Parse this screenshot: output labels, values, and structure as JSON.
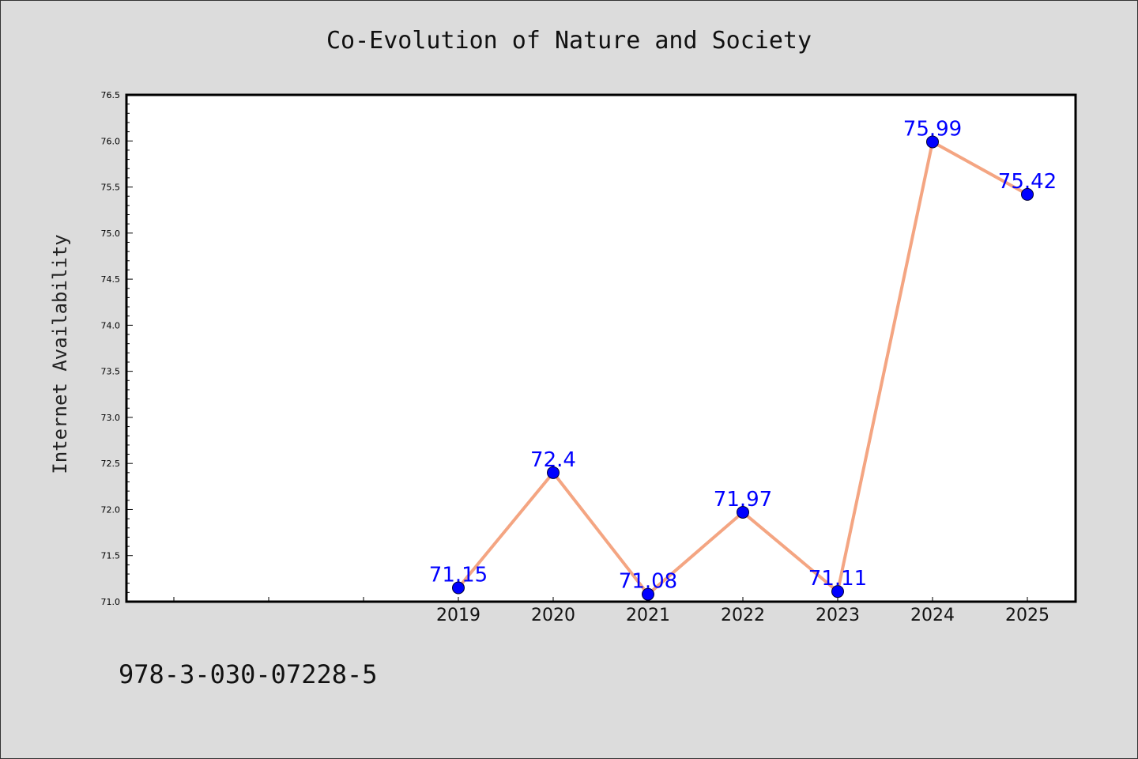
{
  "chart_data": {
    "type": "line",
    "title": "Co-Evolution of Nature and Society",
    "xlabel": "",
    "ylabel": "Internet Availability",
    "x": [
      "2019",
      "2020",
      "2021",
      "2022",
      "2023",
      "2024",
      "2025"
    ],
    "values": [
      71.15,
      72.4,
      71.08,
      71.97,
      71.11,
      75.99,
      75.42
    ],
    "data_labels": [
      "71.15",
      "72.4",
      "71.08",
      "71.97",
      "71.11",
      "75.99",
      "75.42"
    ],
    "ylim": [
      71.0,
      76.5
    ],
    "yticks": [
      "71.0",
      "71.5",
      "72.0",
      "72.5",
      "73.0",
      "73.5",
      "74.0",
      "74.5",
      "75.0",
      "75.5",
      "76.0",
      "76.5"
    ],
    "grid": false,
    "legend": "none",
    "colors": {
      "line": "#f4a582",
      "marker": "#0000ff",
      "label": "#0000ff",
      "background": "#dcdcdc",
      "plot_area": "#ffffff"
    }
  },
  "footer": {
    "isbn": "978-3-030-07228-5"
  }
}
